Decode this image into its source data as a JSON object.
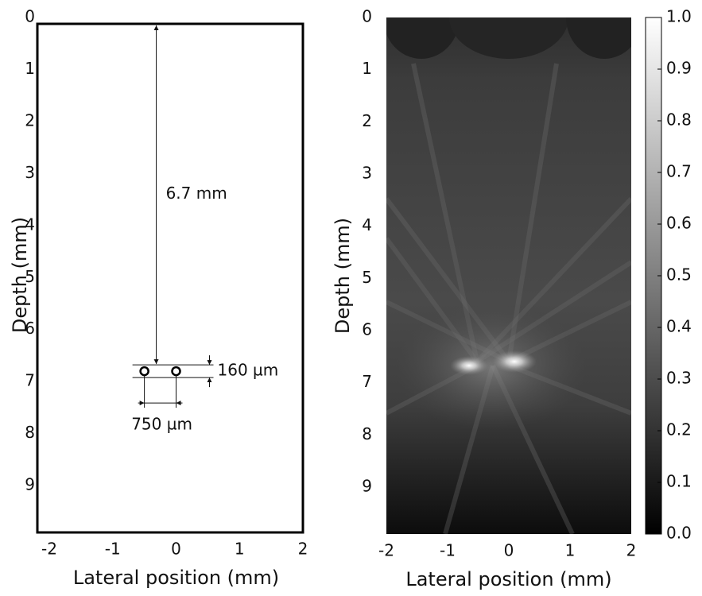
{
  "chart_data": [
    {
      "type": "schematic",
      "xlabel": "Lateral position (mm)",
      "ylabel": "Depth (mm)",
      "xlim": [
        -2,
        2
      ],
      "xticks": [
        -2,
        -1,
        0,
        1,
        2
      ],
      "ylim": [
        0,
        9.9
      ],
      "yticks": [
        0,
        1,
        2,
        3,
        4,
        5,
        6,
        7,
        8,
        9
      ],
      "y_inverted": true,
      "points": {
        "x": [
          -0.5,
          0
        ],
        "y": [
          6.8,
          6.8
        ]
      },
      "annotations": [
        "6.7 mm",
        "160 µm",
        "750 µm"
      ]
    },
    {
      "type": "heatmap",
      "xlabel": "Lateral position (mm)",
      "ylabel": "Depth (mm)",
      "xlim": [
        -2,
        2
      ],
      "xticks": [
        -2,
        -1,
        0,
        1,
        2
      ],
      "ylim": [
        0,
        9.9
      ],
      "yticks": [
        0,
        1,
        2,
        3,
        4,
        5,
        6,
        7,
        8,
        9
      ],
      "y_inverted": true,
      "colormap": "gray",
      "zlim": [
        0,
        1
      ],
      "zticks": [
        {
          "value": 0,
          "label": "0.0"
        },
        0.1,
        0.2,
        0.3,
        0.4,
        0.5,
        0.6,
        0.7,
        0.8,
        0.9,
        {
          "value": 1,
          "label": "1.0"
        }
      ]
    }
  ]
}
